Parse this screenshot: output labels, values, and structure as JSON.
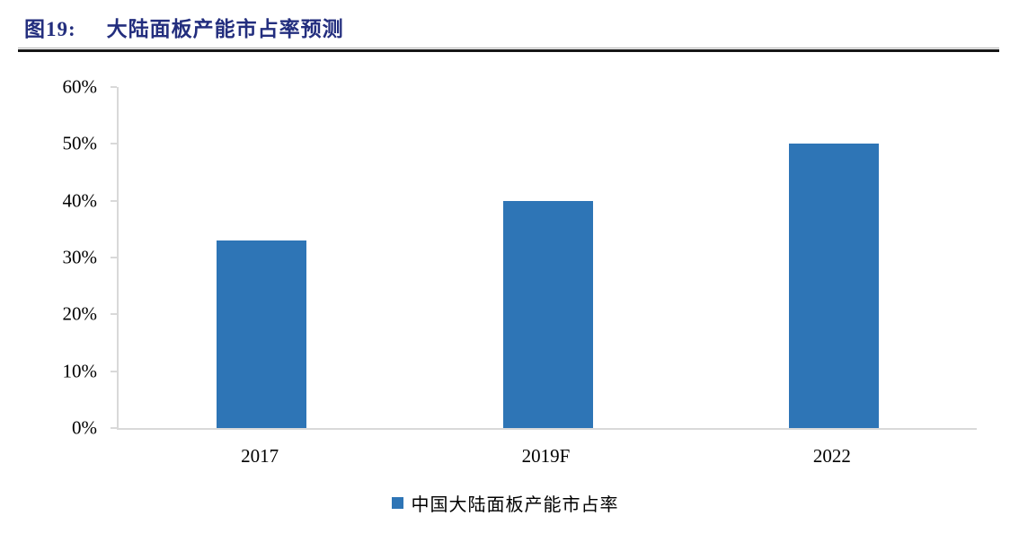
{
  "header": {
    "figure_label": "图19:",
    "title": "大陆面板产能市占率预测"
  },
  "colors": {
    "title_color": "#232E7E",
    "bar_color": "#2E75B6",
    "axis_color": "#D9D9D9",
    "divider_color": "#161616"
  },
  "chart_data": {
    "type": "bar",
    "title": "大陆面板产能市占率预测",
    "categories": [
      "2017",
      "2019F",
      "2022"
    ],
    "values": [
      33,
      40,
      50
    ],
    "unit": "%",
    "series_name": "中国大陆面板产能市占率",
    "ylim": [
      0,
      60
    ],
    "yticks": [
      0,
      10,
      20,
      30,
      40,
      50,
      60
    ],
    "ytick_labels": [
      "0%",
      "10%",
      "20%",
      "30%",
      "40%",
      "50%",
      "60%"
    ],
    "xlabel": "",
    "ylabel": "",
    "grid": false,
    "legend_position": "bottom"
  },
  "legend": {
    "label": "中国大陆面板产能市占率"
  }
}
